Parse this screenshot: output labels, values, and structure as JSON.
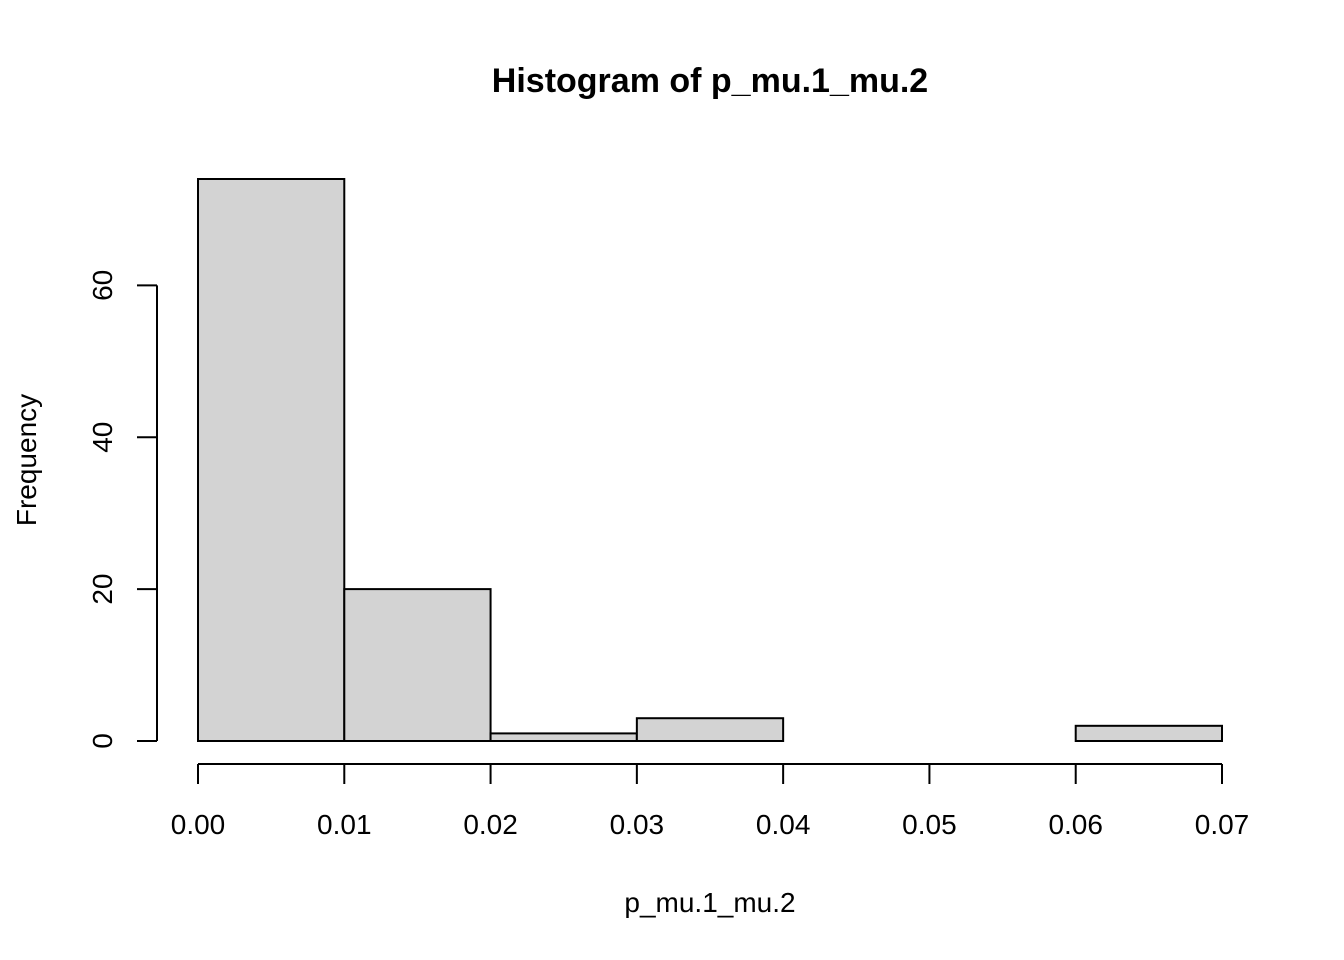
{
  "chart_data": {
    "type": "bar",
    "title": "Histogram of p_mu.1_mu.2",
    "xlabel": "p_mu.1_mu.2",
    "ylabel": "Frequency",
    "bins": [
      {
        "start": 0.0,
        "end": 0.01,
        "count": 74
      },
      {
        "start": 0.01,
        "end": 0.02,
        "count": 20
      },
      {
        "start": 0.02,
        "end": 0.03,
        "count": 1
      },
      {
        "start": 0.03,
        "end": 0.04,
        "count": 3
      },
      {
        "start": 0.04,
        "end": 0.05,
        "count": 0
      },
      {
        "start": 0.05,
        "end": 0.06,
        "count": 0
      },
      {
        "start": 0.06,
        "end": 0.07,
        "count": 2
      }
    ],
    "xlim": [
      0,
      0.07
    ],
    "ylim": [
      0,
      74
    ],
    "x_ticks": [
      "0.00",
      "0.01",
      "0.02",
      "0.03",
      "0.04",
      "0.05",
      "0.06",
      "0.07"
    ],
    "x_tick_values": [
      0,
      0.01,
      0.02,
      0.03,
      0.04,
      0.05,
      0.06,
      0.07
    ],
    "y_ticks": [
      "0",
      "20",
      "40",
      "60"
    ],
    "y_tick_values": [
      0,
      20,
      40,
      60
    ],
    "bar_color": "#d3d3d3",
    "grid": false
  }
}
